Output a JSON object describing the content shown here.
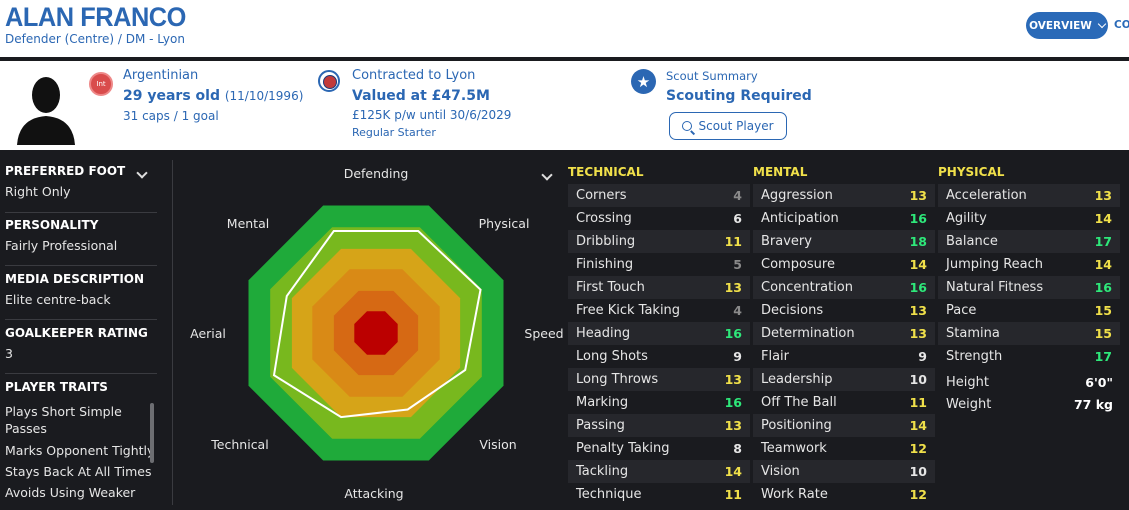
{
  "header": {
    "name": "ALAN FRANCO",
    "subtitle": "Defender (Centre) / DM - Lyon",
    "overview_label": "OVERVIEW",
    "next_tab_partial": "CO"
  },
  "info": {
    "flag_text": "Int",
    "nationality": "Argentinian",
    "age": "29 years old",
    "dob": "(11/10/1996)",
    "caps": "31 caps / 1 goal",
    "contract": "Contracted to Lyon",
    "value": "Valued at £47.5M",
    "wage": "£125K p/w until 30/6/2029",
    "role": "Regular Starter",
    "scout_summary": "Scout Summary",
    "scout_status": "Scouting Required",
    "scout_button": "Scout Player"
  },
  "sidebar": {
    "foot_h": "PREFERRED FOOT",
    "foot_v": "Right Only",
    "pers_h": "PERSONALITY",
    "pers_v": "Fairly Professional",
    "media_h": "MEDIA DESCRIPTION",
    "media_v": "Elite centre-back",
    "gk_h": "GOALKEEPER RATING",
    "gk_v": "3",
    "traits_h": "PLAYER TRAITS",
    "traits": [
      "Plays Short Simple",
      "Passes",
      "Marks Opponent Tightly",
      "Stays Back At All Times",
      "Avoids Using Weaker"
    ]
  },
  "radar": {
    "labels": [
      "Defending",
      "Physical",
      "Speed",
      "Vision",
      "Attacking",
      "Technical",
      "Aerial",
      "Mental"
    ],
    "values": [
      0.8,
      0.8,
      0.82,
      0.7,
      0.6,
      0.66,
      0.8,
      0.7
    ]
  },
  "attributes": {
    "technical_h": "TECHNICAL",
    "mental_h": "MENTAL",
    "physical_h": "PHYSICAL",
    "technical": [
      {
        "n": "Corners",
        "v": "4"
      },
      {
        "n": "Crossing",
        "v": "6"
      },
      {
        "n": "Dribbling",
        "v": "11"
      },
      {
        "n": "Finishing",
        "v": "5"
      },
      {
        "n": "First Touch",
        "v": "13"
      },
      {
        "n": "Free Kick Taking",
        "v": "4"
      },
      {
        "n": "Heading",
        "v": "16"
      },
      {
        "n": "Long Shots",
        "v": "9"
      },
      {
        "n": "Long Throws",
        "v": "13"
      },
      {
        "n": "Marking",
        "v": "16"
      },
      {
        "n": "Passing",
        "v": "13"
      },
      {
        "n": "Penalty Taking",
        "v": "8"
      },
      {
        "n": "Tackling",
        "v": "14"
      },
      {
        "n": "Technique",
        "v": "11"
      }
    ],
    "mental": [
      {
        "n": "Aggression",
        "v": "13"
      },
      {
        "n": "Anticipation",
        "v": "16"
      },
      {
        "n": "Bravery",
        "v": "18"
      },
      {
        "n": "Composure",
        "v": "14"
      },
      {
        "n": "Concentration",
        "v": "16"
      },
      {
        "n": "Decisions",
        "v": "13"
      },
      {
        "n": "Determination",
        "v": "13"
      },
      {
        "n": "Flair",
        "v": "9"
      },
      {
        "n": "Leadership",
        "v": "10"
      },
      {
        "n": "Off The Ball",
        "v": "11"
      },
      {
        "n": "Positioning",
        "v": "14"
      },
      {
        "n": "Teamwork",
        "v": "12"
      },
      {
        "n": "Vision",
        "v": "10"
      },
      {
        "n": "Work Rate",
        "v": "12"
      }
    ],
    "physical": [
      {
        "n": "Acceleration",
        "v": "13"
      },
      {
        "n": "Agility",
        "v": "14"
      },
      {
        "n": "Balance",
        "v": "17"
      },
      {
        "n": "Jumping Reach",
        "v": "14"
      },
      {
        "n": "Natural Fitness",
        "v": "16"
      },
      {
        "n": "Pace",
        "v": "15"
      },
      {
        "n": "Stamina",
        "v": "15"
      },
      {
        "n": "Strength",
        "v": "17"
      }
    ],
    "height_label": "Height",
    "height": "6'0\"",
    "weight_label": "Weight",
    "weight": "77 kg"
  },
  "colors": {
    "low": "#8a8a8a",
    "mid": "#e6e6e6",
    "good": "#f0e04a",
    "great": "#2ee87a",
    "ring1": "#1faa3a",
    "ring2": "#78b81e",
    "ring3": "#d6a418",
    "ring4": "#d98a16",
    "ring5": "#d66914",
    "core": "#bb0000"
  }
}
